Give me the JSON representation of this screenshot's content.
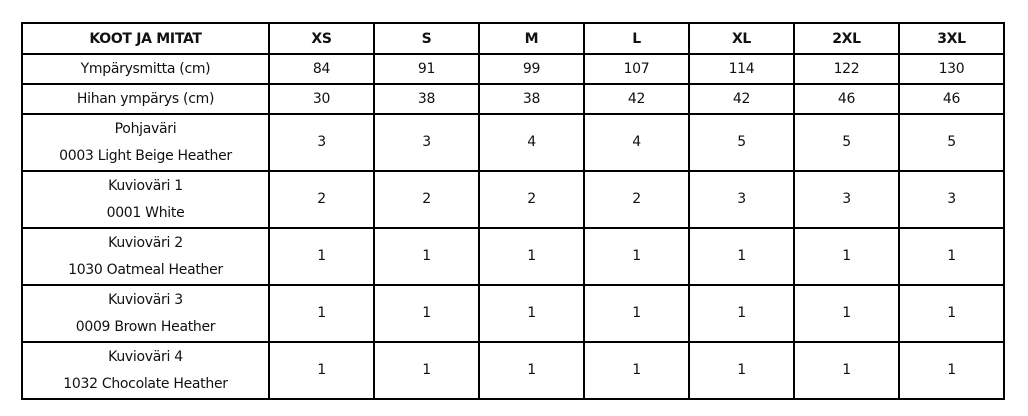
{
  "header": {
    "title": "KOOT JA MITAT",
    "sizes": [
      "XS",
      "S",
      "M",
      "L",
      "XL",
      "2XL",
      "3XL"
    ]
  },
  "rows": [
    {
      "label": "Ympärysmitta (cm)",
      "sublabel": "",
      "values": [
        "84",
        "91",
        "99",
        "107",
        "114",
        "122",
        "130"
      ]
    },
    {
      "label": "Hihan ympärys (cm)",
      "sublabel": "",
      "values": [
        "30",
        "38",
        "38",
        "42",
        "42",
        "46",
        "46"
      ]
    },
    {
      "label": "Pohjaväri",
      "sublabel": "0003 Light Beige Heather",
      "values": [
        "3",
        "3",
        "4",
        "4",
        "5",
        "5",
        "5"
      ]
    },
    {
      "label": "Kuvioväri 1",
      "sublabel": "0001 White",
      "values": [
        "2",
        "2",
        "2",
        "2",
        "3",
        "3",
        "3"
      ]
    },
    {
      "label": "Kuvioväri 2",
      "sublabel": "1030 Oatmeal Heather",
      "values": [
        "1",
        "1",
        "1",
        "1",
        "1",
        "1",
        "1"
      ]
    },
    {
      "label": "Kuvioväri 3",
      "sublabel": "0009 Brown Heather",
      "values": [
        "1",
        "1",
        "1",
        "1",
        "1",
        "1",
        "1"
      ]
    },
    {
      "label": "Kuvioväri 4",
      "sublabel": "1032 Chocolate Heather",
      "values": [
        "1",
        "1",
        "1",
        "1",
        "1",
        "1",
        "1"
      ]
    }
  ]
}
